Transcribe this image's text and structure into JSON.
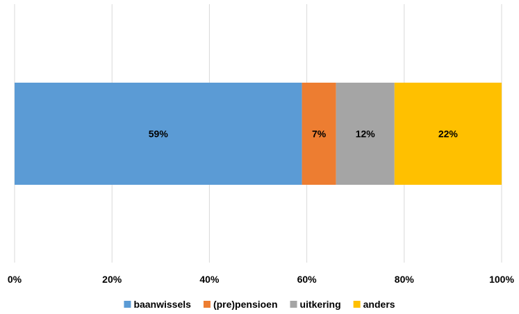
{
  "chart_data": {
    "type": "bar",
    "orientation": "horizontal",
    "stacked": true,
    "percent": true,
    "title": "",
    "xlabel": "",
    "ylabel": "",
    "xlim": [
      0,
      100
    ],
    "x_ticks": [
      "0%",
      "20%",
      "40%",
      "60%",
      "80%",
      "100%"
    ],
    "grid": true,
    "legend_position": "bottom",
    "series": [
      {
        "name": "baanwissels",
        "value": 59,
        "label": "59%",
        "color": "#5B9BD5"
      },
      {
        "name": "(pre)pensioen",
        "value": 7,
        "label": "7%",
        "color": "#ED7D31"
      },
      {
        "name": "uitkering",
        "value": 12,
        "label": "12%",
        "color": "#A5A5A5"
      },
      {
        "name": "anders",
        "value": 22,
        "label": "22%",
        "color": "#FFC000"
      }
    ]
  }
}
